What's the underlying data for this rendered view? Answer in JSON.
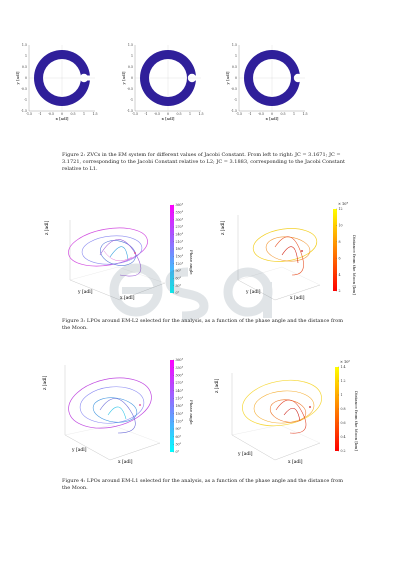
{
  "figure2": {
    "panels": [
      {
        "ylabel": "y [adl]",
        "xlabel": "x [adl]"
      },
      {
        "ylabel": "y [adl]",
        "xlabel": "x [adl]"
      },
      {
        "ylabel": "y [adl]",
        "xlabel": "x [adl]"
      }
    ],
    "ring_color": "#2f1f9a",
    "ticks_y": [
      "1.5",
      "1",
      "0.5",
      "0",
      "-0.5",
      "-1",
      "-1.5"
    ],
    "ticks_x": [
      "-1.5",
      "-1",
      "-0.5",
      "0",
      "0.5",
      "1",
      "1.5"
    ],
    "caption": "Figure 2: ZVCs in the EM system for different values of Jacobi Constant. From left to right: JC = 3.1671; JC = 3.1721, corresponding to the Jacobi Constant relative to L2; JC = 3.1883, corresponding to the Jacobi Constant relative to L1."
  },
  "figure3": {
    "left": {
      "xlabel": "x [adl]",
      "ylabel": "y [adl]",
      "zlabel": "z [adl]",
      "colorbar_label": "Phase angle",
      "colorbar_ticks": [
        "360°",
        "330°",
        "300°",
        "270°",
        "240°",
        "210°",
        "180°",
        "150°",
        "120°",
        "90°",
        "60°",
        "30°",
        "0°"
      ],
      "colormap": [
        "#ff00ff",
        "#00ffff"
      ]
    },
    "right": {
      "xlabel": "x [adl]",
      "ylabel": "y [adl]",
      "zlabel": "z [adl]",
      "colorbar_label": "Distance from the Moon [km]",
      "colorbar_exponent": "× 10⁴",
      "colorbar_ticks": [
        "12",
        "10",
        "8",
        "6",
        "4",
        "2"
      ],
      "colormap": [
        "#ffff00",
        "#ff0000"
      ]
    },
    "caption": "Figure 3: LPOs around EM-L2 selected for the analysis, as a function of the phase angle and the distance from the Moon."
  },
  "figure4": {
    "left": {
      "xlabel": "x [adl]",
      "ylabel": "y [adl]",
      "zlabel": "z [adl]",
      "colorbar_label": "Phase angle",
      "colorbar_ticks": [
        "360°",
        "330°",
        "300°",
        "270°",
        "240°",
        "210°",
        "180°",
        "150°",
        "120°",
        "90°",
        "60°",
        "30°",
        "0°"
      ],
      "colormap": [
        "#ff00ff",
        "#00ffff"
      ]
    },
    "right": {
      "xlabel": "x [adl]",
      "ylabel": "y [adl]",
      "zlabel": "z [adl]",
      "colorbar_label": "Distance from the Moon [km]",
      "colorbar_exponent": "× 10⁵",
      "colorbar_ticks": [
        "1.4",
        "1.2",
        "1",
        "0.8",
        "0.6",
        "0.4",
        "0.2"
      ],
      "colormap": [
        "#ffff00",
        "#ff0000"
      ]
    },
    "caption": "Figure 4: LPOs around EM-L1 selected for the analysis, as a function of the phase angle and the distance from the Moon."
  },
  "watermark": "esa"
}
